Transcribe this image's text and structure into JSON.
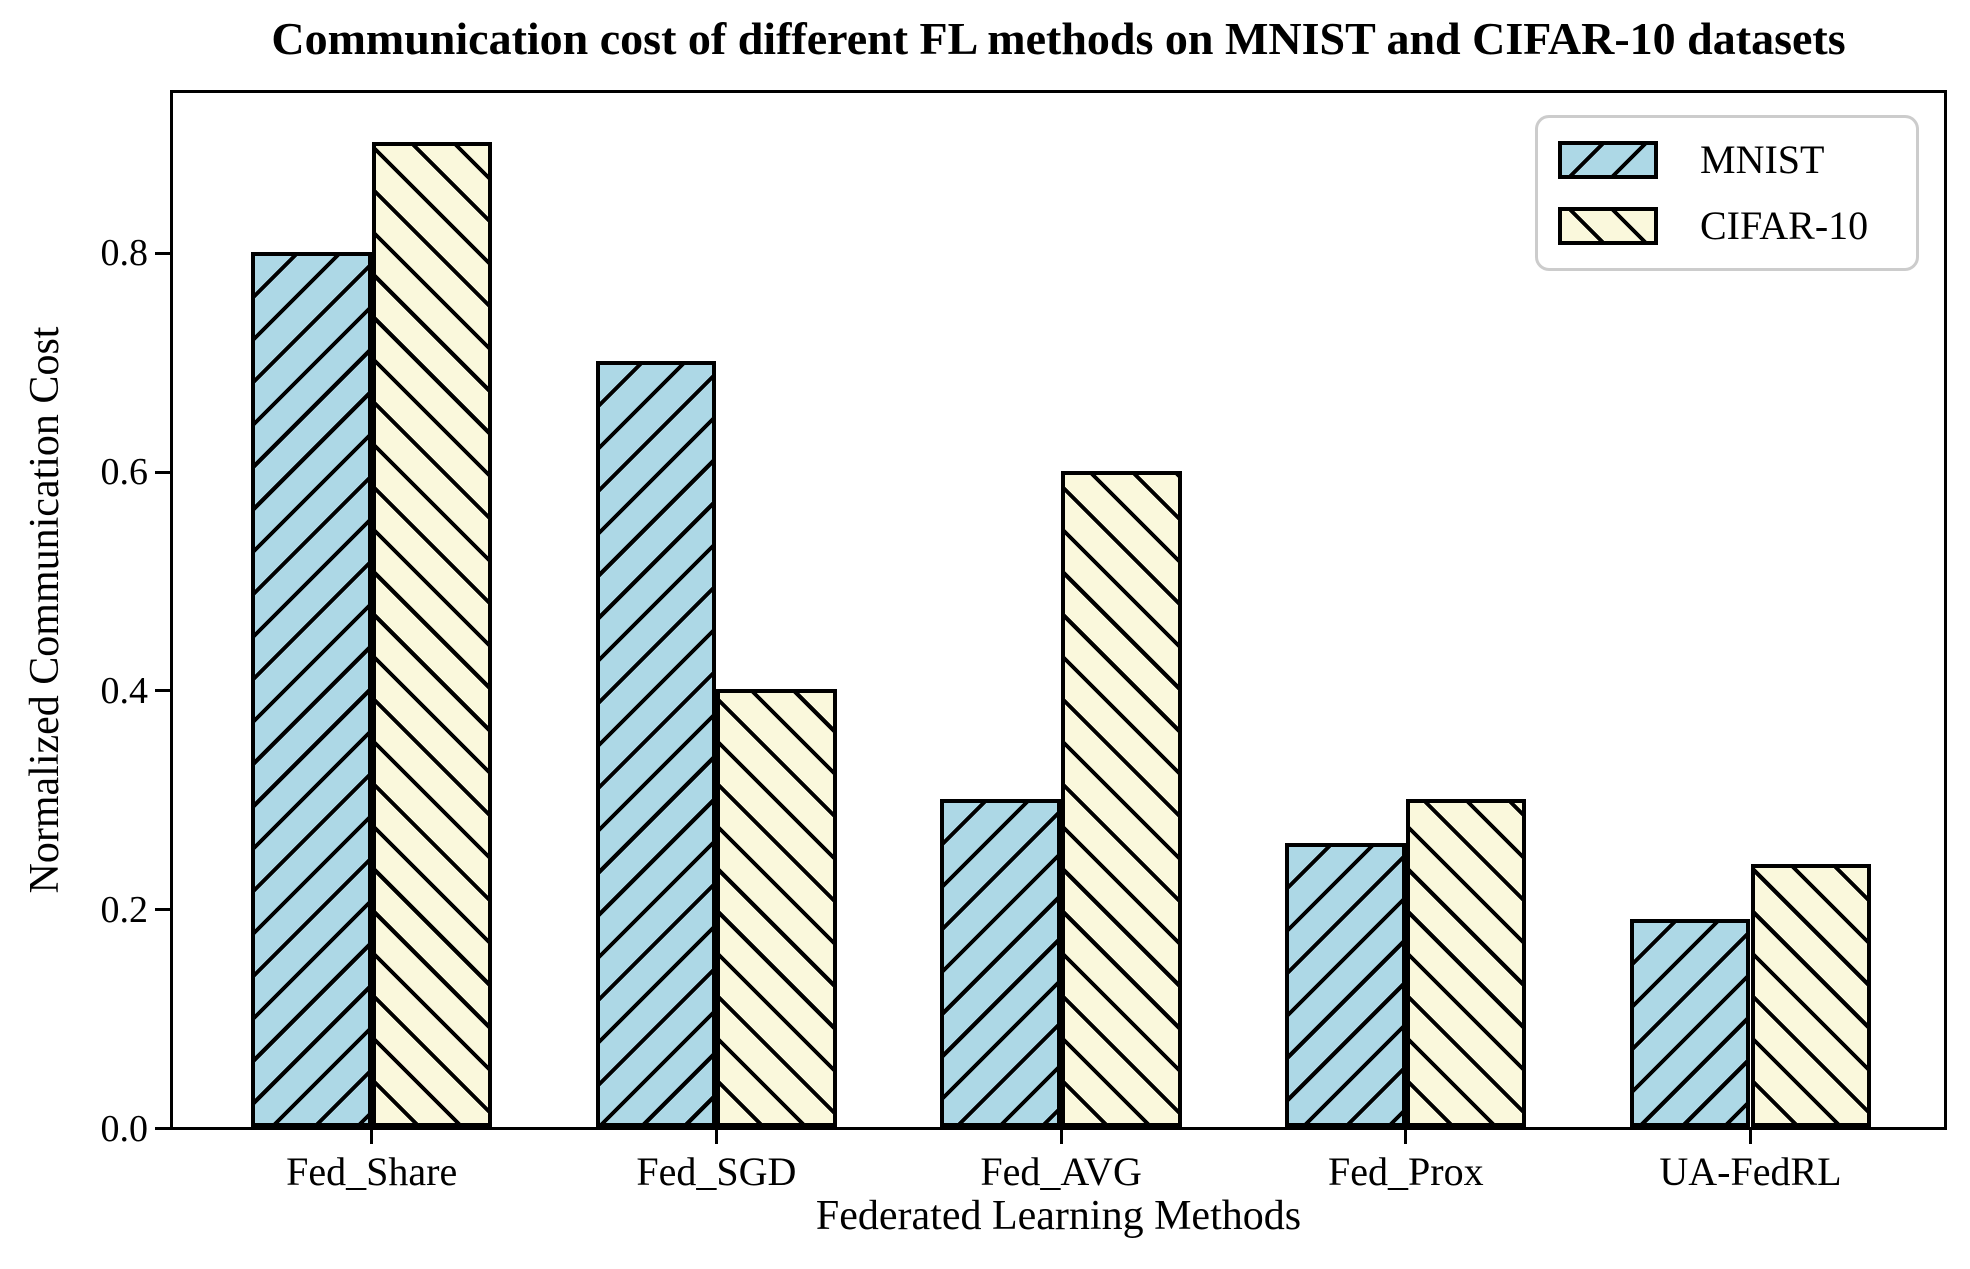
{
  "chart_data": {
    "type": "bar",
    "title": "Communication cost of different FL methods on MNIST and CIFAR-10 datasets",
    "xlabel": "Federated Learning Methods",
    "ylabel": "Normalized Communication Cost",
    "categories": [
      "Fed_Share",
      "Fed_SGD",
      "Fed_AVG",
      "Fed_Prox",
      "UA-FedRL"
    ],
    "series": [
      {
        "name": "MNIST",
        "color": "#ADD8E6",
        "hatch": "/",
        "values": [
          0.8,
          0.7,
          0.3,
          0.26,
          0.19
        ]
      },
      {
        "name": "CIFAR-10",
        "color": "#FAF8DC",
        "hatch": "\\",
        "values": [
          0.9,
          0.4,
          0.6,
          0.3,
          0.24
        ]
      }
    ],
    "yticks": [
      {
        "value": 0.0,
        "label": "0.0"
      },
      {
        "value": 0.2,
        "label": "0.2"
      },
      {
        "value": 0.4,
        "label": "0.4"
      },
      {
        "value": 0.6,
        "label": "0.6"
      },
      {
        "value": 0.8,
        "label": "0.8"
      }
    ],
    "ylim": [
      0,
      0.945
    ],
    "xlim": [
      -0.585,
      4.57
    ],
    "bar_width": 0.35,
    "edge_color": "#000000",
    "grid": false,
    "legend": {
      "position": "upper right",
      "entries": [
        "MNIST",
        "CIFAR-10"
      ]
    }
  }
}
